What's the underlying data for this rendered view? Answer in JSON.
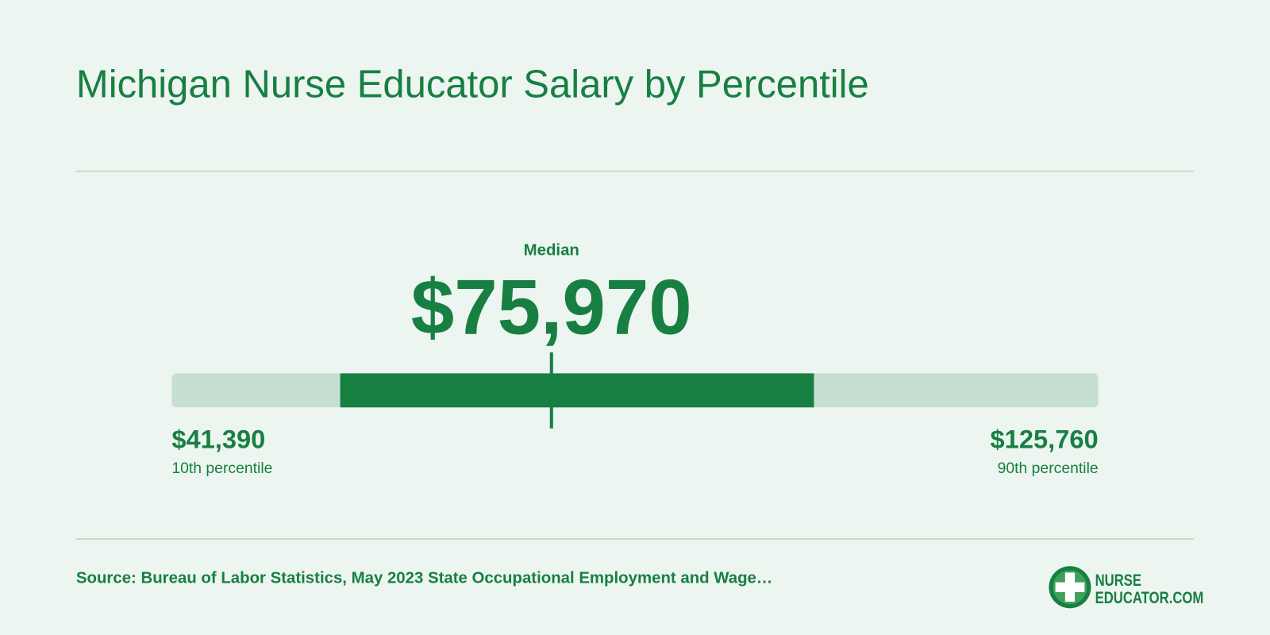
{
  "header": {
    "title": "Michigan Nurse Educator Salary by Percentile"
  },
  "range": {
    "median_label": "Median",
    "median": 75970,
    "median_text": "$75,970",
    "low": 41390,
    "low_text": "$41,390",
    "low_label": "10th percentile",
    "high": 125760,
    "high_text": "$125,760",
    "high_label": "90th percentile",
    "p25": 56730,
    "p75": 99870
  },
  "footer": {
    "source": "Source: Bureau of Labor Statistics, May 2023 State Occupational Employment and Wage…",
    "logo": [
      "NURSE",
      "EDUCATOR.COM"
    ]
  }
}
